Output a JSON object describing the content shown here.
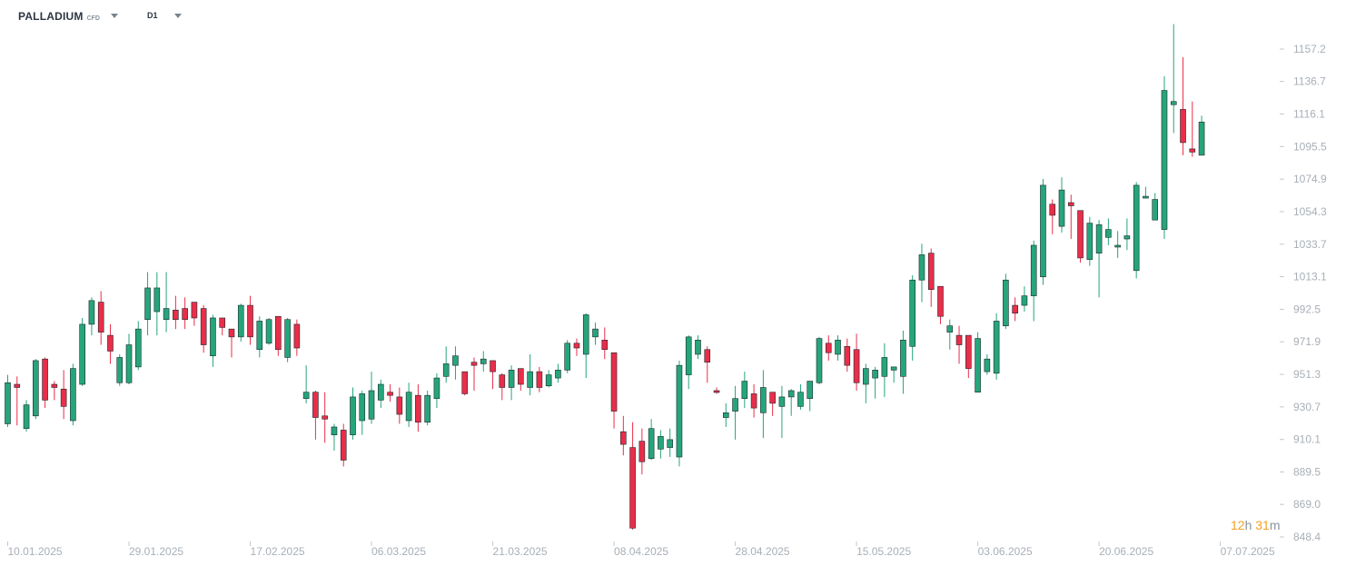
{
  "toolbar": {
    "symbol": "PALLADIUM",
    "symbol_type": "CFD",
    "timeframe": "D1"
  },
  "countdown": {
    "hours": "12",
    "hours_unit": "h",
    "minutes": "31",
    "minutes_unit": "m"
  },
  "colors": {
    "up": "#26a57a",
    "down": "#ea2d49",
    "axis_text": "#a8afb7",
    "countdown": "#f4a020"
  },
  "chart_data": {
    "type": "candlestick",
    "price_ticks": [
      "1157.2",
      "1136.7",
      "1116.1",
      "1095.5",
      "1074.9",
      "1054.3",
      "1033.7",
      "1013.1",
      "992.5",
      "971.9",
      "951.3",
      "930.7",
      "910.1",
      "889.5",
      "869.0",
      "848.4"
    ],
    "ylim": [
      848.4,
      1177.8
    ],
    "date_ticks": [
      {
        "label": "10.01.2025",
        "index": 0
      },
      {
        "label": "29.01.2025",
        "index": 13
      },
      {
        "label": "17.02.2025",
        "index": 26
      },
      {
        "label": "06.03.2025",
        "index": 39
      },
      {
        "label": "21.03.2025",
        "index": 52
      },
      {
        "label": "08.04.2025",
        "index": 65
      },
      {
        "label": "28.04.2025",
        "index": 78
      },
      {
        "label": "15.05.2025",
        "index": 91
      },
      {
        "label": "03.06.2025",
        "index": 104
      },
      {
        "label": "20.06.2025",
        "index": 117
      },
      {
        "label": "07.07.2025",
        "index": 130
      }
    ],
    "candles": [
      [
        920.0,
        946.0,
        951.0,
        918.0
      ],
      [
        945.0,
        943.0,
        950.0,
        919.0
      ],
      [
        917.0,
        932.0,
        935.0,
        915.0
      ],
      [
        925.0,
        960.0,
        961.0,
        923.0
      ],
      [
        961.0,
        935.0,
        962.0,
        930.0
      ],
      [
        945.0,
        943.0,
        947.0,
        935.0
      ],
      [
        942.0,
        931.0,
        954.0,
        923.0
      ],
      [
        922.0,
        955.0,
        958.0,
        919.0
      ],
      [
        945.0,
        983.0,
        987.0,
        944.0
      ],
      [
        983.0,
        998.0,
        1000.0,
        976.0
      ],
      [
        997.0,
        978.0,
        1004.0,
        970.0
      ],
      [
        976.0,
        966.0,
        983.0,
        958.0
      ],
      [
        946.0,
        962.0,
        964.0,
        944.0
      ],
      [
        946.0,
        970.0,
        977.0,
        945.0
      ],
      [
        956.0,
        980.0,
        985.0,
        954.0
      ],
      [
        986.0,
        1006.0,
        1016.0,
        976.0
      ],
      [
        991.0,
        1006.0,
        1016.0,
        976.0
      ],
      [
        986.0,
        993.0,
        1016.0,
        978.0
      ],
      [
        992.0,
        986.0,
        1001.0,
        980.0
      ],
      [
        993.0,
        986.0,
        1000.0,
        980.0
      ],
      [
        997.0,
        987.0,
        991.0,
        982.0
      ],
      [
        993.0,
        970.0,
        995.0,
        965.0
      ],
      [
        963.0,
        987.0,
        989.0,
        956.0
      ],
      [
        987.0,
        981.0,
        986.0,
        976.0
      ],
      [
        980.0,
        975.0,
        980.0,
        962.0
      ],
      [
        975.0,
        995.0,
        996.0,
        972.0
      ],
      [
        995.0,
        975.0,
        1001.0,
        970.0
      ],
      [
        967.0,
        985.0,
        988.0,
        962.0
      ],
      [
        971.0,
        986.0,
        987.0,
        970.0
      ],
      [
        988.0,
        967.0,
        986.0,
        963.0
      ],
      [
        962.0,
        986.0,
        987.0,
        959.0
      ],
      [
        983.0,
        968.0,
        986.0,
        963.0
      ],
      [
        936.0,
        940.0,
        957.0,
        933.0
      ],
      [
        940.0,
        924.0,
        941.0,
        910.0
      ],
      [
        925.0,
        923.0,
        940.0,
        908.0
      ],
      [
        913.0,
        918.0,
        920.0,
        903.0
      ],
      [
        916.0,
        897.0,
        920.0,
        893.0
      ],
      [
        913.0,
        937.0,
        943.0,
        910.0
      ],
      [
        922.0,
        939.0,
        941.0,
        913.0
      ],
      [
        923.0,
        941.0,
        953.0,
        920.0
      ],
      [
        935.0,
        945.0,
        948.0,
        930.0
      ],
      [
        940.0,
        938.0,
        945.0,
        934.0
      ],
      [
        937.0,
        926.0,
        943.0,
        920.0
      ],
      [
        922.0,
        940.0,
        946.0,
        918.0
      ],
      [
        938.0,
        921.0,
        945.0,
        915.0
      ],
      [
        921.0,
        938.0,
        941.0,
        919.0
      ],
      [
        936.0,
        949.0,
        952.0,
        930.0
      ],
      [
        950.0,
        958.0,
        969.0,
        946.0
      ],
      [
        957.0,
        963.0,
        969.0,
        948.0
      ],
      [
        953.0,
        939.0,
        950.0,
        938.0
      ],
      [
        959.0,
        957.0,
        962.0,
        941.0
      ],
      [
        958.0,
        961.0,
        966.0,
        953.0
      ],
      [
        960.0,
        953.0,
        957.0,
        942.0
      ],
      [
        951.0,
        943.0,
        952.0,
        935.0
      ],
      [
        943.0,
        954.0,
        957.0,
        935.0
      ],
      [
        955.0,
        945.0,
        955.0,
        941.0
      ],
      [
        943.0,
        953.0,
        964.0,
        938.0
      ],
      [
        953.0,
        943.0,
        956.0,
        940.0
      ],
      [
        944.0,
        951.0,
        954.0,
        943.0
      ],
      [
        949.0,
        954.0,
        958.0,
        946.0
      ],
      [
        954.0,
        971.0,
        973.0,
        952.0
      ],
      [
        971.0,
        968.0,
        974.0,
        963.0
      ],
      [
        964.0,
        989.0,
        990.0,
        949.0
      ],
      [
        975.0,
        980.0,
        984.0,
        970.0
      ],
      [
        973.0,
        967.0,
        981.0,
        961.0
      ],
      [
        965.0,
        928.0,
        960.0,
        917.0
      ],
      [
        915.0,
        907.0,
        925.0,
        900.0
      ],
      [
        905.0,
        854.0,
        921.0,
        853.0
      ],
      [
        909.0,
        896.0,
        917.0,
        888.0
      ],
      [
        898.0,
        917.0,
        923.0,
        897.0
      ],
      [
        904.0,
        912.0,
        916.0,
        898.0
      ],
      [
        905.0,
        910.0,
        917.0,
        899.0
      ],
      [
        899.0,
        957.0,
        960.0,
        893.0
      ],
      [
        951.0,
        975.0,
        976.0,
        942.0
      ],
      [
        964.0,
        973.0,
        976.0,
        961.0
      ],
      [
        967.0,
        959.0,
        969.0,
        946.0
      ],
      [
        941.0,
        940.0,
        943.0,
        939.0
      ],
      [
        924.0,
        927.0,
        933.0,
        918.0
      ],
      [
        928.0,
        936.0,
        944.0,
        910.0
      ],
      [
        936.0,
        947.0,
        953.0,
        930.0
      ],
      [
        939.0,
        930.0,
        945.0,
        924.0
      ],
      [
        927.0,
        943.0,
        954.0,
        911.0
      ],
      [
        940.0,
        933.0,
        940.0,
        925.0
      ],
      [
        931.0,
        937.0,
        944.0,
        911.0
      ],
      [
        937.0,
        941.0,
        942.0,
        925.0
      ],
      [
        931.0,
        940.0,
        945.0,
        929.0
      ],
      [
        936.0,
        947.0,
        946.0,
        928.0
      ],
      [
        946.0,
        974.0,
        975.0,
        945.0
      ],
      [
        971.0,
        965.0,
        976.0,
        960.0
      ],
      [
        964.0,
        973.0,
        976.0,
        960.0
      ],
      [
        969.0,
        957.0,
        974.0,
        953.0
      ],
      [
        967.0,
        946.0,
        977.0,
        941.0
      ],
      [
        945.0,
        955.0,
        958.0,
        933.0
      ],
      [
        949.0,
        954.0,
        956.0,
        936.0
      ],
      [
        950.0,
        962.0,
        971.0,
        937.0
      ],
      [
        954.0,
        956.0,
        956.0,
        946.0
      ],
      [
        950.0,
        973.0,
        979.0,
        939.0
      ],
      [
        969.0,
        1011.0,
        1014.0,
        960.0
      ],
      [
        1011.0,
        1027.0,
        1034.0,
        997.0
      ],
      [
        1028.0,
        1005.0,
        1031.0,
        994.0
      ],
      [
        1007.0,
        988.0,
        1004.0,
        983.0
      ],
      [
        978.0,
        982.0,
        986.0,
        967.0
      ],
      [
        976.0,
        970.0,
        982.0,
        958.0
      ],
      [
        976.0,
        955.0,
        969.0,
        949.0
      ],
      [
        940.0,
        974.0,
        978.0,
        940.0
      ],
      [
        953.0,
        961.0,
        964.0,
        951.0
      ],
      [
        952.0,
        985.0,
        990.0,
        948.0
      ],
      [
        982.0,
        1011.0,
        1015.0,
        980.0
      ],
      [
        995.0,
        990.0,
        1000.0,
        985.0
      ],
      [
        995.0,
        1001.0,
        1007.0,
        991.0
      ],
      [
        1001.0,
        1033.0,
        1036.0,
        985.0
      ],
      [
        1013.0,
        1071.0,
        1075.0,
        1008.0
      ],
      [
        1059.0,
        1052.0,
        1062.0,
        1040.0
      ],
      [
        1045.0,
        1068.0,
        1076.0,
        1041.0
      ],
      [
        1060.0,
        1058.0,
        1065.0,
        1037.0
      ],
      [
        1055.0,
        1025.0,
        1054.0,
        1022.0
      ],
      [
        1024.0,
        1047.0,
        1051.0,
        1020.0
      ],
      [
        1028.0,
        1046.0,
        1049.0,
        1000.0
      ],
      [
        1038.0,
        1043.0,
        1050.0,
        1033.0
      ],
      [
        1032.0,
        1033.0,
        1042.0,
        1025.0
      ],
      [
        1037.0,
        1039.0,
        1050.0,
        1030.0
      ],
      [
        1017.0,
        1071.0,
        1073.0,
        1012.0
      ],
      [
        1064.0,
        1064.0,
        1070.0,
        1064.0
      ],
      [
        1049.0,
        1062.0,
        1066.0,
        1049.0
      ],
      [
        1043.0,
        1131.0,
        1140.0,
        1037.0
      ],
      [
        1122.0,
        1124.0,
        1173.0,
        1104.0
      ],
      [
        1119.0,
        1098.0,
        1152.0,
        1090.0
      ],
      [
        1094.0,
        1092.0,
        1124.0,
        1089.0
      ],
      [
        1090.0,
        1111.0,
        1115.0,
        1090.0
      ]
    ]
  }
}
